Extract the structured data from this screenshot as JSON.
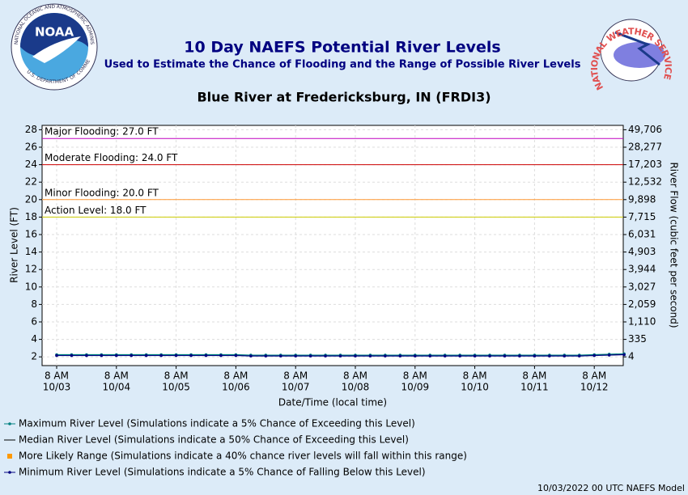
{
  "logos": {
    "noaa": {
      "name": "NOAA",
      "ring_top": "NATIONAL OCEANIC AND ATMOSPHERIC ADMINISTRATION",
      "ring_bottom": "U.S. DEPARTMENT OF COMMERCE"
    },
    "nws": {
      "ring": "NATIONAL WEATHER SERVICE"
    }
  },
  "chart_data": {
    "type": "line",
    "title": "10 Day NAEFS Potential River Levels",
    "subtitle": "Used to Estimate the Chance of Flooding and the Range of Possible River Levels",
    "station": "Blue River at Fredericksburg, IN (FRDI3)",
    "y_label": "River Level (FT)",
    "y2_label": "River Flow (cubic feet per second)",
    "x_label": "Date/Time (local time)",
    "footer": "10/03/2022 00 UTC NAEFS Model",
    "grid": true,
    "ylim": [
      1,
      28.5
    ],
    "yticks": [
      2,
      4,
      6,
      8,
      10,
      12,
      14,
      16,
      18,
      20,
      22,
      24,
      26,
      28
    ],
    "y2ticks": [
      {
        "value": 4,
        "label": "4"
      },
      {
        "value": 335,
        "label": "335"
      },
      {
        "value": 1110,
        "label": "1,110"
      },
      {
        "value": 2059,
        "label": "2,059"
      },
      {
        "value": 3027,
        "label": "3,027"
      },
      {
        "value": 3944,
        "label": "3,944"
      },
      {
        "value": 4903,
        "label": "4,903"
      },
      {
        "value": 6031,
        "label": "6,031"
      },
      {
        "value": 7715,
        "label": "7,715"
      },
      {
        "value": 9898,
        "label": "9,898"
      },
      {
        "value": 12532,
        "label": "12,532"
      },
      {
        "value": 17203,
        "label": "17,203"
      },
      {
        "value": 28277,
        "label": "28,277"
      },
      {
        "value": 49706,
        "label": "49,706"
      }
    ],
    "thresholds": [
      {
        "label": "Major Flooding: 27.0 FT",
        "value": 27,
        "color": "#c000c0"
      },
      {
        "label": "Moderate Flooding: 24.0 FT",
        "value": 24,
        "color": "#cc0000"
      },
      {
        "label": "Minor Flooding: 20.0 FT",
        "value": 20,
        "color": "#ff9933"
      },
      {
        "label": "Action Level: 18.0 FT",
        "value": 18,
        "color": "#cccc00"
      }
    ],
    "categories": [
      [
        "8 AM",
        "10/03"
      ],
      null,
      null,
      null,
      [
        "8 AM",
        "10/04"
      ],
      null,
      null,
      null,
      [
        "8 AM",
        "10/05"
      ],
      null,
      null,
      null,
      [
        "8 AM",
        "10/06"
      ],
      null,
      null,
      null,
      [
        "8 AM",
        "10/07"
      ],
      null,
      null,
      null,
      [
        "8 AM",
        "10/08"
      ],
      null,
      null,
      null,
      [
        "8 AM",
        "10/09"
      ],
      null,
      null,
      null,
      [
        "8 AM",
        "10/10"
      ],
      null,
      null,
      null,
      [
        "8 AM",
        "10/11"
      ],
      null,
      null,
      null,
      [
        "8 AM",
        "10/12"
      ],
      null,
      null
    ],
    "series": [
      {
        "name": "Maximum River Level (Simulations indicate a 5% Chance of Exceeding this Level)",
        "color": "#008080",
        "kind": "dotted-line",
        "values": [
          2.25,
          2.25,
          2.25,
          2.25,
          2.25,
          2.25,
          2.25,
          2.25,
          2.25,
          2.25,
          2.25,
          2.25,
          2.25,
          2.2,
          2.2,
          2.2,
          2.2,
          2.2,
          2.2,
          2.2,
          2.2,
          2.2,
          2.2,
          2.2,
          2.2,
          2.2,
          2.2,
          2.2,
          2.2,
          2.2,
          2.2,
          2.2,
          2.2,
          2.2,
          2.2,
          2.2,
          2.25,
          2.3,
          2.35
        ]
      },
      {
        "name": "Median River Level (Simulations indicate a 50% Chance of Exceeding this Level)",
        "color": "#000000",
        "kind": "line",
        "values": [
          2.2,
          2.2,
          2.2,
          2.2,
          2.2,
          2.2,
          2.2,
          2.2,
          2.2,
          2.2,
          2.2,
          2.2,
          2.2,
          2.15,
          2.15,
          2.15,
          2.15,
          2.15,
          2.15,
          2.15,
          2.15,
          2.15,
          2.15,
          2.15,
          2.15,
          2.15,
          2.15,
          2.15,
          2.15,
          2.15,
          2.15,
          2.15,
          2.15,
          2.15,
          2.15,
          2.15,
          2.2,
          2.25,
          2.3
        ]
      },
      {
        "name": "More Likely Range (Simulations indicate a 40% chance river levels will fall within this range)",
        "color": "#ff9900",
        "kind": "range",
        "lower": [
          2.17,
          2.17,
          2.17,
          2.17,
          2.17,
          2.17,
          2.17,
          2.17,
          2.17,
          2.17,
          2.17,
          2.17,
          2.17,
          2.12,
          2.12,
          2.12,
          2.12,
          2.12,
          2.12,
          2.12,
          2.12,
          2.12,
          2.12,
          2.12,
          2.12,
          2.12,
          2.12,
          2.12,
          2.12,
          2.12,
          2.12,
          2.12,
          2.12,
          2.12,
          2.12,
          2.12,
          2.17,
          2.22,
          2.27
        ],
        "upper": [
          2.23,
          2.23,
          2.23,
          2.23,
          2.23,
          2.23,
          2.23,
          2.23,
          2.23,
          2.23,
          2.23,
          2.23,
          2.23,
          2.18,
          2.18,
          2.18,
          2.18,
          2.18,
          2.18,
          2.18,
          2.18,
          2.18,
          2.18,
          2.18,
          2.18,
          2.18,
          2.18,
          2.18,
          2.18,
          2.18,
          2.18,
          2.18,
          2.18,
          2.18,
          2.18,
          2.18,
          2.23,
          2.28,
          2.33
        ]
      },
      {
        "name": "Minimum River Level (Simulations indicate a 5% Chance of Falling Below this Level)",
        "color": "#000080",
        "kind": "dotted-line",
        "values": [
          2.15,
          2.15,
          2.15,
          2.15,
          2.15,
          2.15,
          2.15,
          2.15,
          2.15,
          2.15,
          2.15,
          2.15,
          2.15,
          2.1,
          2.1,
          2.1,
          2.1,
          2.1,
          2.1,
          2.1,
          2.1,
          2.1,
          2.1,
          2.1,
          2.1,
          2.1,
          2.1,
          2.1,
          2.1,
          2.1,
          2.1,
          2.1,
          2.1,
          2.1,
          2.1,
          2.1,
          2.15,
          2.2,
          2.25
        ]
      }
    ]
  }
}
